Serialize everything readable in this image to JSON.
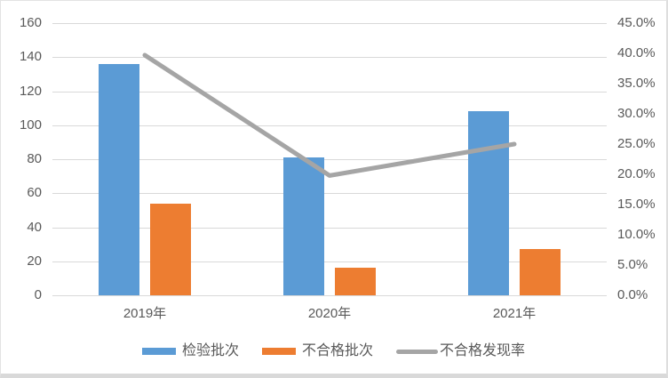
{
  "chart_data": {
    "type": "bar",
    "subtype": "combo-bar-line-dual-axis",
    "title": "",
    "categories": [
      "2019年",
      "2020年",
      "2021年"
    ],
    "series": [
      {
        "name": "检验批次",
        "type": "bar",
        "axis": "left",
        "color": "#5b9bd5",
        "values": [
          136,
          81,
          108
        ]
      },
      {
        "name": "不合格批次",
        "type": "bar",
        "axis": "left",
        "color": "#ed7d31",
        "values": [
          54,
          16,
          27
        ]
      },
      {
        "name": "不合格发现率",
        "type": "line",
        "axis": "right",
        "color": "#a5a5a5",
        "unit": "%",
        "values": [
          39.7,
          19.8,
          25.0
        ]
      }
    ],
    "left_axis": {
      "min": 0,
      "max": 160,
      "step": 20,
      "tick_labels": [
        "0",
        "20",
        "40",
        "60",
        "80",
        "100",
        "120",
        "140",
        "160"
      ]
    },
    "right_axis": {
      "min": 0,
      "max": 45,
      "step": 5,
      "tick_labels": [
        "0.0%",
        "5.0%",
        "10.0%",
        "15.0%",
        "20.0%",
        "25.0%",
        "30.0%",
        "35.0%",
        "40.0%",
        "45.0%"
      ]
    },
    "grid": "horizontal",
    "legend_position": "bottom",
    "colors": {
      "gridline": "#d9d9d9",
      "axis_text": "#595959",
      "background": "#ffffff",
      "bottom_border": "#d9d9d9"
    }
  }
}
